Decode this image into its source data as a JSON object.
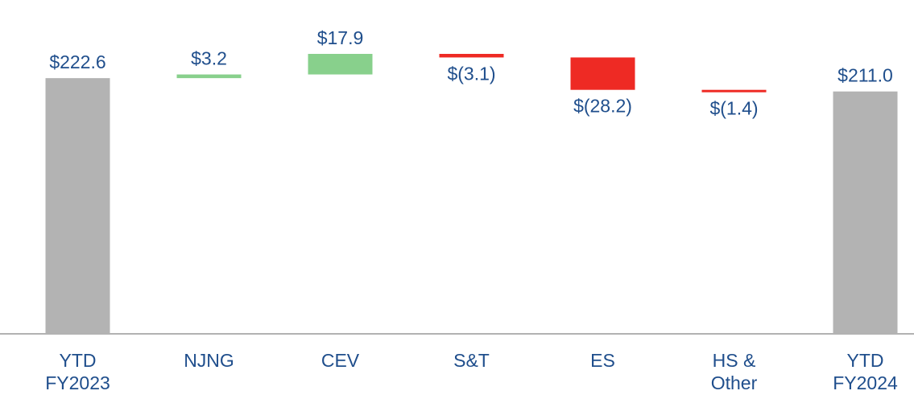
{
  "chart_data": {
    "type": "waterfall",
    "categories": [
      "YTD\nFY2023",
      "NJNG",
      "CEV",
      "S&T",
      "ES",
      "HS &\nOther",
      "YTD\nFY2024"
    ],
    "values": [
      222.6,
      3.2,
      17.9,
      -3.1,
      -28.2,
      -1.4,
      211.0
    ],
    "value_labels": [
      "$222.6",
      "$3.2",
      "$17.9",
      "$(3.1)",
      "$(28.2)",
      "$(1.4)",
      "$211.0"
    ],
    "totals": [
      true,
      false,
      false,
      false,
      false,
      false,
      true
    ],
    "colors": {
      "total": "#b3b3b3",
      "increase": "#88d08c",
      "decrease": "#ee2a24"
    },
    "ylim": [
      0,
      250
    ]
  }
}
